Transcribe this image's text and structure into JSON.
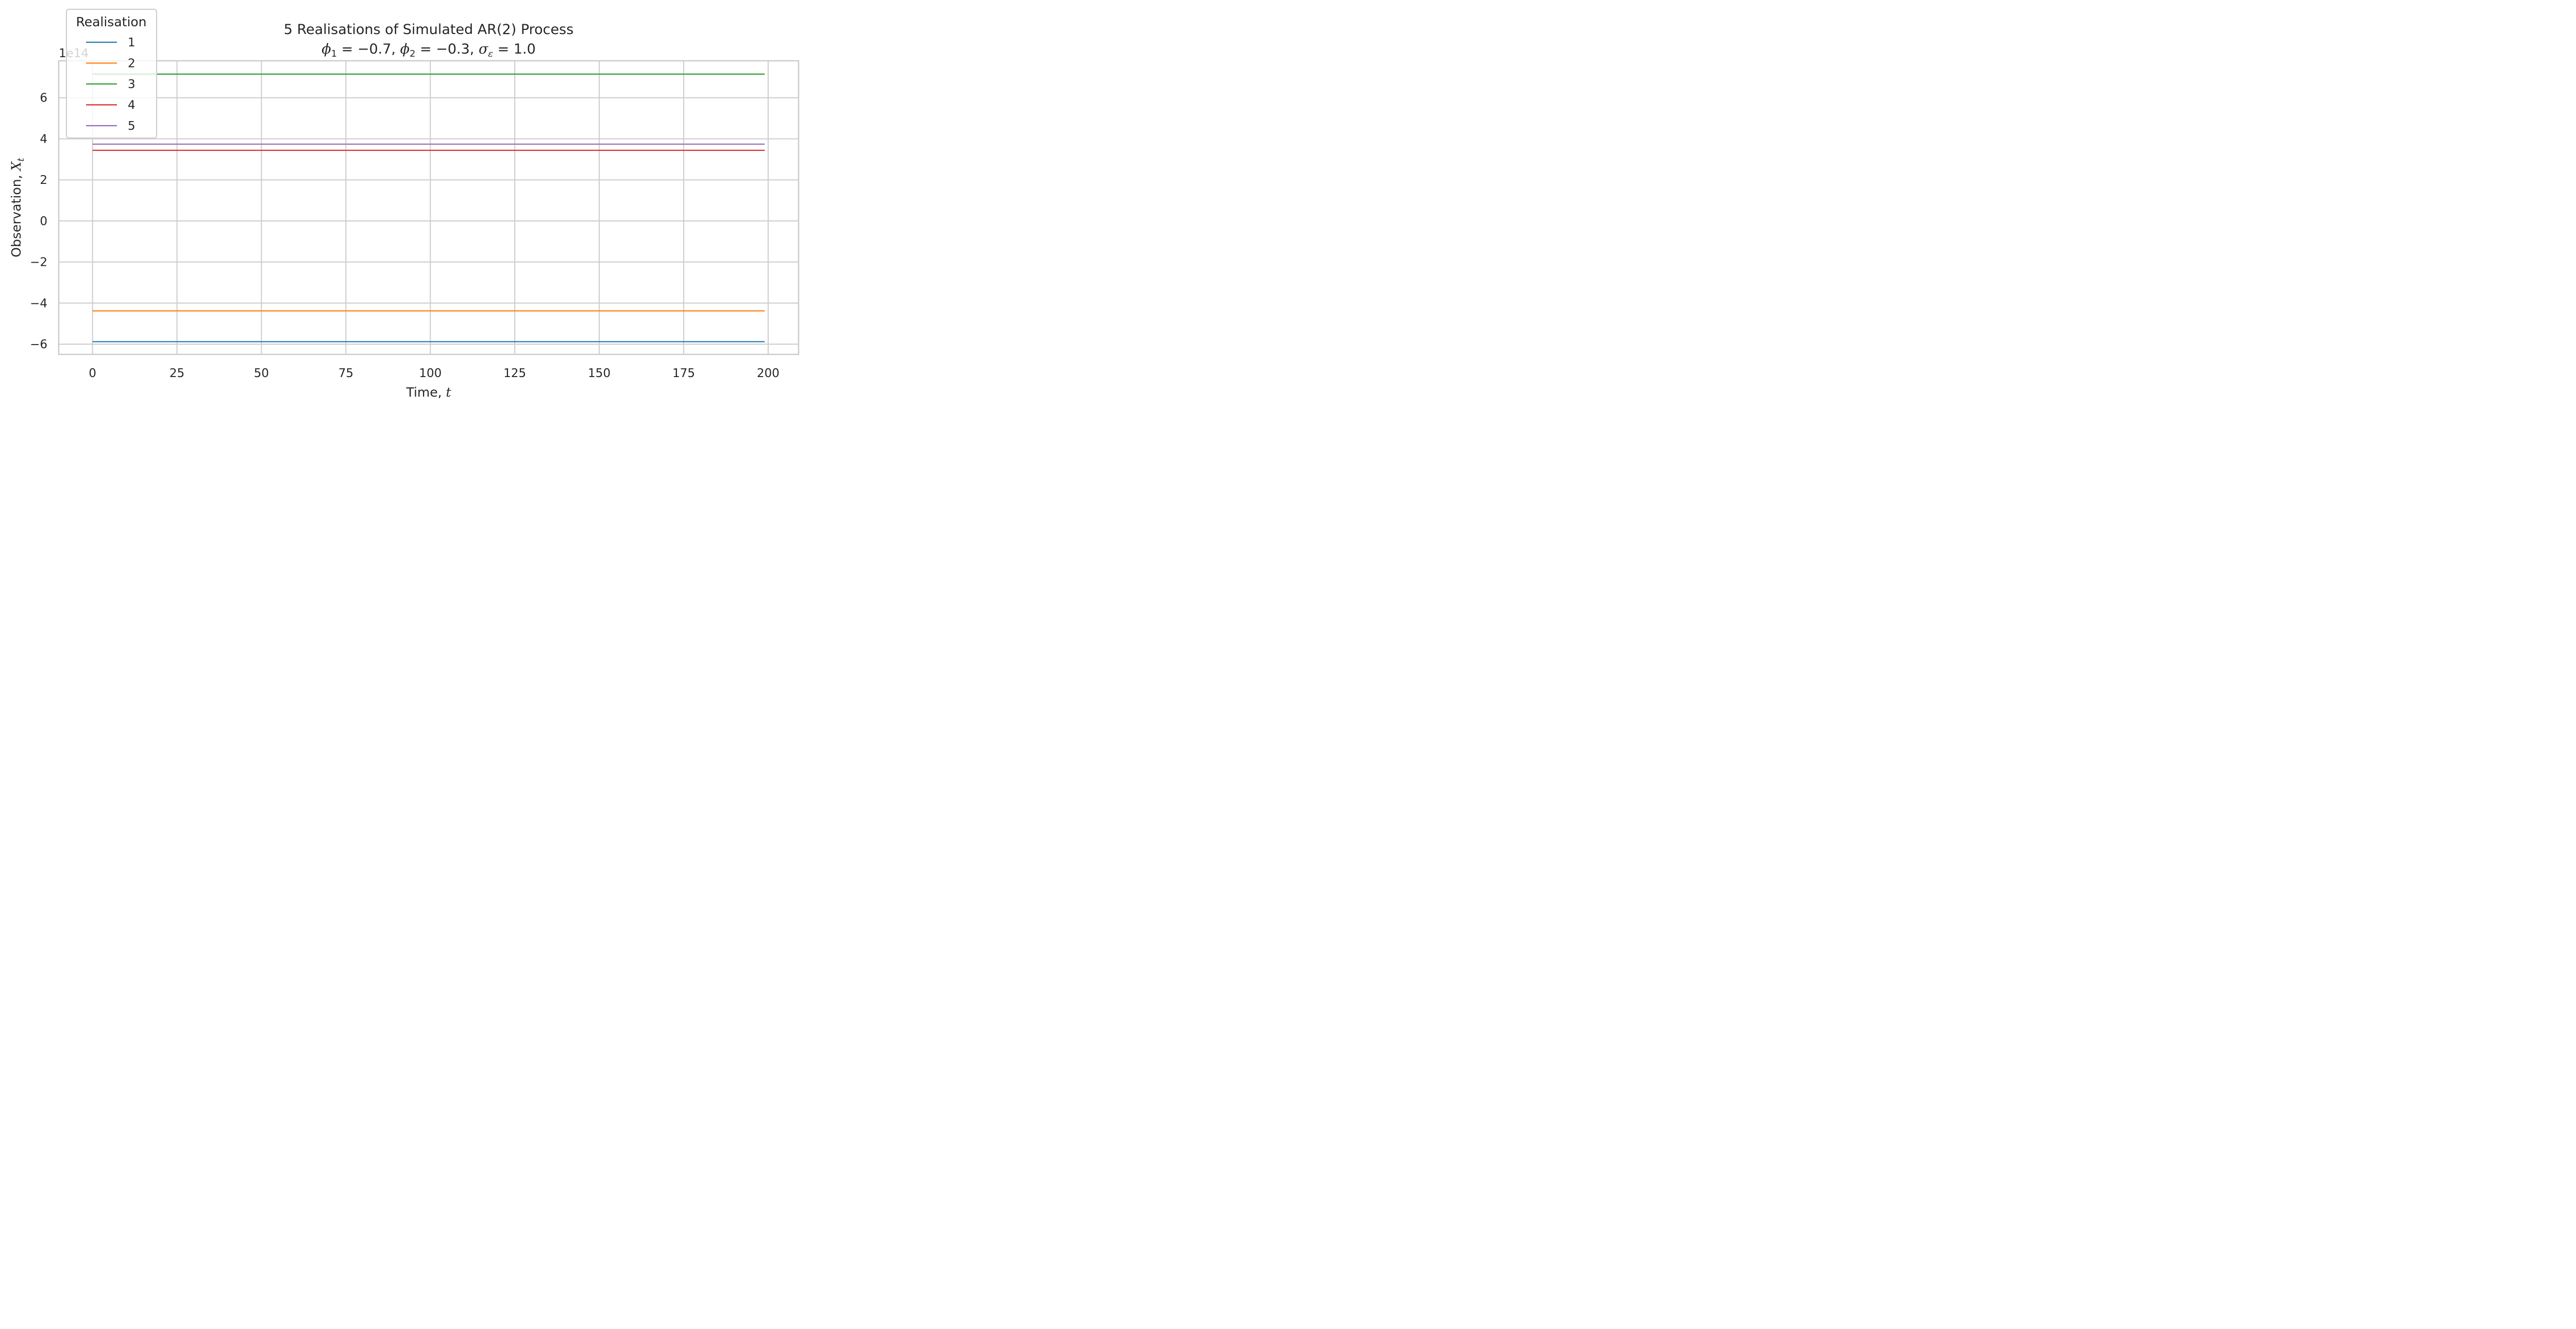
{
  "chart_data": {
    "type": "line",
    "title": "5 Realisations of Simulated AR(2) Process",
    "subtitle": {
      "phi1_symbol": "ϕ",
      "phi1_sub": "1",
      "phi1_rest": " = −0.7, ",
      "phi2_symbol": "ϕ",
      "phi2_sub": "2",
      "phi2_rest": " = −0.3, ",
      "sigma_symbol": "σ",
      "sigma_sub": "ε",
      "sigma_rest": " = 1.0"
    },
    "xlabel": {
      "text": "Time, ",
      "var": "t"
    },
    "ylabel": {
      "text": "Observation, ",
      "var": "X",
      "sub": "t"
    },
    "y_offset_text": "1e14",
    "xlim": [
      -10,
      209
    ],
    "ylim": [
      -6.5,
      7.8
    ],
    "x_ticks": [
      0,
      25,
      50,
      75,
      100,
      125,
      150,
      175,
      200
    ],
    "x_tick_labels": [
      "0",
      "25",
      "50",
      "75",
      "100",
      "125",
      "150",
      "175",
      "200"
    ],
    "y_ticks": [
      -6,
      -4,
      -2,
      0,
      2,
      4,
      6
    ],
    "y_tick_labels": [
      "−6",
      "−4",
      "−2",
      "0",
      "2",
      "4",
      "6"
    ],
    "grid": true,
    "legend": {
      "title": "Realisation",
      "placement": "top-left"
    },
    "x": [
      0,
      199
    ],
    "series": [
      {
        "name": "1",
        "color": "#1f77b4",
        "values": [
          -5.88,
          -5.88
        ]
      },
      {
        "name": "2",
        "color": "#ff7f0e",
        "values": [
          -4.38,
          -4.38
        ]
      },
      {
        "name": "3",
        "color": "#2ca02c",
        "values": [
          7.15,
          7.15
        ]
      },
      {
        "name": "4",
        "color": "#d62728",
        "values": [
          3.44,
          3.44
        ]
      },
      {
        "name": "5",
        "color": "#9467bd",
        "values": [
          3.74,
          3.74
        ]
      }
    ]
  }
}
